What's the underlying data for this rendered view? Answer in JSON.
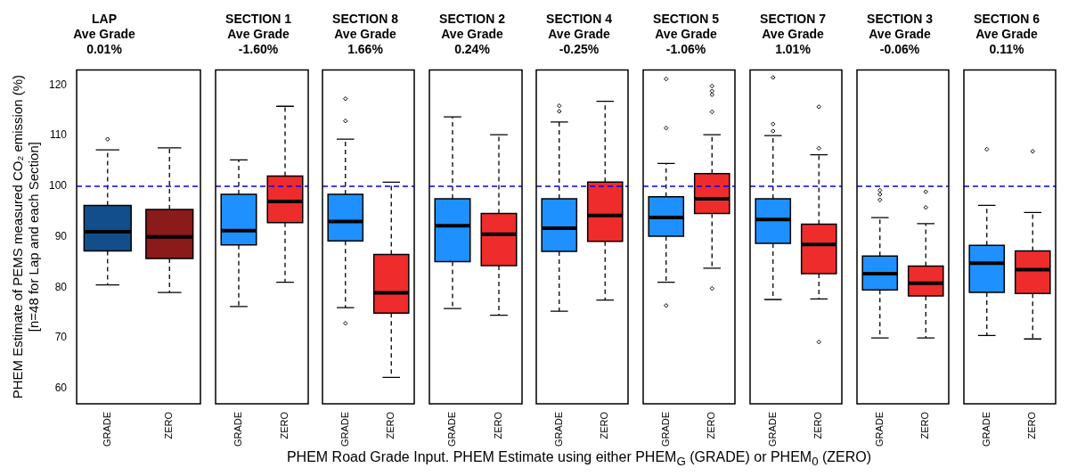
{
  "chart_data": [
    {
      "type": "box",
      "title": "LAP\nAve Grade\n0.01%",
      "ylabel": "PHEM Estimate of PEMS measured CO₂ emission (%)\n[n=48 for Lap and each Section]",
      "categories": [
        "GRADE",
        "ZERO"
      ],
      "colors": [
        "#124e8a",
        "#8b1a1a"
      ],
      "boxes": [
        {
          "low": 80.5,
          "q1": 87.2,
          "median": 91,
          "q3": 96.2,
          "high": 107.2,
          "outliers": [
            109.3
          ]
        },
        {
          "low": 79,
          "q1": 85.7,
          "median": 90,
          "q3": 95.4,
          "high": 107.6
        }
      ],
      "ylim": [
        57,
        123
      ],
      "yticks": [
        60,
        70,
        80,
        90,
        100,
        110,
        120
      ],
      "grid": false,
      "legend": false,
      "ref_lines": [
        {
          "axis": "y",
          "value": 100,
          "color": "#0000ff",
          "line_style": "dashed"
        }
      ]
    },
    {
      "type": "box",
      "title": "SECTION 1\nAve Grade\n-1.60%",
      "categories": [
        "GRADE",
        "ZERO"
      ],
      "colors": [
        "#1e90ff",
        "#ee2c2c"
      ],
      "boxes": [
        {
          "low": 76.2,
          "q1": 88.4,
          "median": 91.2,
          "q3": 98.4,
          "high": 105.2
        },
        {
          "low": 81,
          "q1": 92.8,
          "median": 97,
          "q3": 102,
          "high": 115.8
        }
      ],
      "ylim": [
        57,
        123
      ],
      "yticks": [
        60,
        70,
        80,
        90,
        100,
        110,
        120
      ],
      "tick_labels": "x",
      "grid": false,
      "legend": false,
      "ref_lines": [
        {
          "axis": "y",
          "value": 100,
          "color": "#0000ff",
          "line_style": "dashed"
        }
      ]
    },
    {
      "type": "box",
      "title": "SECTION 8\nAve Grade\n1.66%",
      "categories": [
        "GRADE",
        "ZERO"
      ],
      "colors": [
        "#1e90ff",
        "#ee2c2c"
      ],
      "boxes": [
        {
          "low": 76,
          "q1": 89.2,
          "median": 93,
          "q3": 98.4,
          "high": 109.3,
          "outliers": [
            117.3,
            112.9,
            72.9
          ]
        },
        {
          "low": 62.2,
          "q1": 74.9,
          "median": 78.9,
          "q3": 86.5,
          "high": 100.8
        }
      ],
      "ylim": [
        57,
        123
      ],
      "yticks": [
        60,
        70,
        80,
        90,
        100,
        110,
        120
      ],
      "tick_labels": "x",
      "grid": false,
      "legend": false,
      "ref_lines": [
        {
          "axis": "y",
          "value": 100,
          "color": "#0000ff",
          "line_style": "dashed"
        }
      ]
    },
    {
      "type": "box",
      "title": "SECTION 2\nAve Grade\n0.24%",
      "categories": [
        "GRADE",
        "ZERO"
      ],
      "colors": [
        "#1e90ff",
        "#ee2c2c"
      ],
      "boxes": [
        {
          "low": 75.8,
          "q1": 85.1,
          "median": 92.2,
          "q3": 97.5,
          "high": 113.7
        },
        {
          "low": 74.5,
          "q1": 84.3,
          "median": 90.5,
          "q3": 94.6,
          "high": 110.2
        }
      ],
      "ylim": [
        57,
        123
      ],
      "yticks": [
        60,
        70,
        80,
        90,
        100,
        110,
        120
      ],
      "tick_labels": "x",
      "grid": false,
      "legend": false,
      "ref_lines": [
        {
          "axis": "y",
          "value": 100,
          "color": "#0000ff",
          "line_style": "dashed"
        }
      ]
    },
    {
      "type": "box",
      "title": "SECTION 4\nAve Grade\n-0.25%",
      "xlabel": "PHEM Road Grade Input.  PHEM Estimate using either PHEM$_{G}$ (GRADE) or PHEM$_{0}$ (ZERO)",
      "categories": [
        "GRADE",
        "ZERO"
      ],
      "colors": [
        "#1e90ff",
        "#ee2c2c"
      ],
      "boxes": [
        {
          "low": 75.3,
          "q1": 87.1,
          "median": 91.7,
          "q3": 97.5,
          "high": 112.7,
          "outliers": [
            115.9,
            114.8
          ]
        },
        {
          "low": 77.5,
          "q1": 89.1,
          "median": 94.2,
          "q3": 100.8,
          "high": 116.8
        }
      ],
      "ylim": [
        57,
        123
      ],
      "yticks": [
        60,
        70,
        80,
        90,
        100,
        110,
        120
      ],
      "tick_labels": "x",
      "grid": false,
      "legend": false,
      "ref_lines": [
        {
          "axis": "y",
          "value": 100,
          "color": "#0000ff",
          "line_style": "dashed"
        }
      ]
    },
    {
      "type": "box",
      "title": "SECTION 5\nAve Grade\n-1.06%",
      "categories": [
        "GRADE",
        "ZERO"
      ],
      "colors": [
        "#1e90ff",
        "#ee2c2c"
      ],
      "boxes": [
        {
          "low": 81,
          "q1": 90.1,
          "median": 93.8,
          "q3": 97.9,
          "high": 104.5,
          "outliers": [
            121.2,
            111.5,
            76.4
          ]
        },
        {
          "low": 83.8,
          "q1": 94.6,
          "median": 97.5,
          "q3": 102.5,
          "high": 110.2,
          "outliers": [
            119.8,
            118.8,
            118.1,
            114.7,
            79.8
          ]
        }
      ],
      "ylim": [
        57,
        123
      ],
      "yticks": [
        60,
        70,
        80,
        90,
        100,
        110,
        120
      ],
      "tick_labels": "x",
      "grid": false,
      "legend": false,
      "ref_lines": [
        {
          "axis": "y",
          "value": 100,
          "color": "#0000ff",
          "line_style": "dashed"
        }
      ]
    },
    {
      "type": "box",
      "title": "SECTION 7\nAve Grade\n1.01%",
      "categories": [
        "GRADE",
        "ZERO"
      ],
      "colors": [
        "#1e90ff",
        "#ee2c2c"
      ],
      "boxes": [
        {
          "low": 77.6,
          "q1": 88.7,
          "median": 93.4,
          "q3": 97.5,
          "high": 110,
          "outliers": [
            121.5,
            112.3,
            110.9
          ]
        },
        {
          "low": 77.7,
          "q1": 82.7,
          "median": 88.5,
          "q3": 92.5,
          "high": 106.2,
          "outliers": [
            115.7,
            107.5,
            69.2
          ]
        }
      ],
      "ylim": [
        57,
        123
      ],
      "yticks": [
        60,
        70,
        80,
        90,
        100,
        110,
        120
      ],
      "tick_labels": "x",
      "grid": false,
      "legend": false,
      "ref_lines": [
        {
          "axis": "y",
          "value": 100,
          "color": "#0000ff",
          "line_style": "dashed"
        }
      ]
    },
    {
      "type": "box",
      "title": "SECTION 3\nAve Grade\n-0.06%",
      "categories": [
        "GRADE",
        "ZERO"
      ],
      "colors": [
        "#1e90ff",
        "#ee2c2c"
      ],
      "boxes": [
        {
          "low": 70,
          "q1": 79.5,
          "median": 82.7,
          "q3": 86.2,
          "high": 93.8,
          "outliers": [
            99.2,
            98.4,
            97.3
          ]
        },
        {
          "low": 70,
          "q1": 78.3,
          "median": 80.8,
          "q3": 84.2,
          "high": 92.6,
          "outliers": [
            98.9,
            95.8
          ]
        }
      ],
      "ylim": [
        57,
        123
      ],
      "yticks": [
        60,
        70,
        80,
        90,
        100,
        110,
        120
      ],
      "tick_labels": "x",
      "grid": false,
      "legend": false,
      "ref_lines": [
        {
          "axis": "y",
          "value": 100,
          "color": "#0000ff",
          "line_style": "dashed"
        }
      ]
    },
    {
      "type": "box",
      "title": "SECTION 6\nAve Grade\n0.11%",
      "categories": [
        "GRADE",
        "ZERO"
      ],
      "colors": [
        "#1e90ff",
        "#ee2c2c"
      ],
      "boxes": [
        {
          "low": 70.5,
          "q1": 79,
          "median": 84.8,
          "q3": 88.3,
          "high": 96.2,
          "outliers": [
            107.3
          ]
        },
        {
          "low": 69.8,
          "q1": 78.8,
          "median": 83.5,
          "q3": 87.2,
          "high": 94.8,
          "outliers": [
            106.9
          ]
        }
      ],
      "ylim": [
        57,
        123
      ],
      "yticks": [
        60,
        70,
        80,
        90,
        100,
        110,
        120
      ],
      "tick_labels": "x",
      "grid": false,
      "legend": false,
      "ref_lines": [
        {
          "axis": "y",
          "value": 100,
          "color": "#0000ff",
          "line_style": "dashed"
        }
      ]
    }
  ]
}
